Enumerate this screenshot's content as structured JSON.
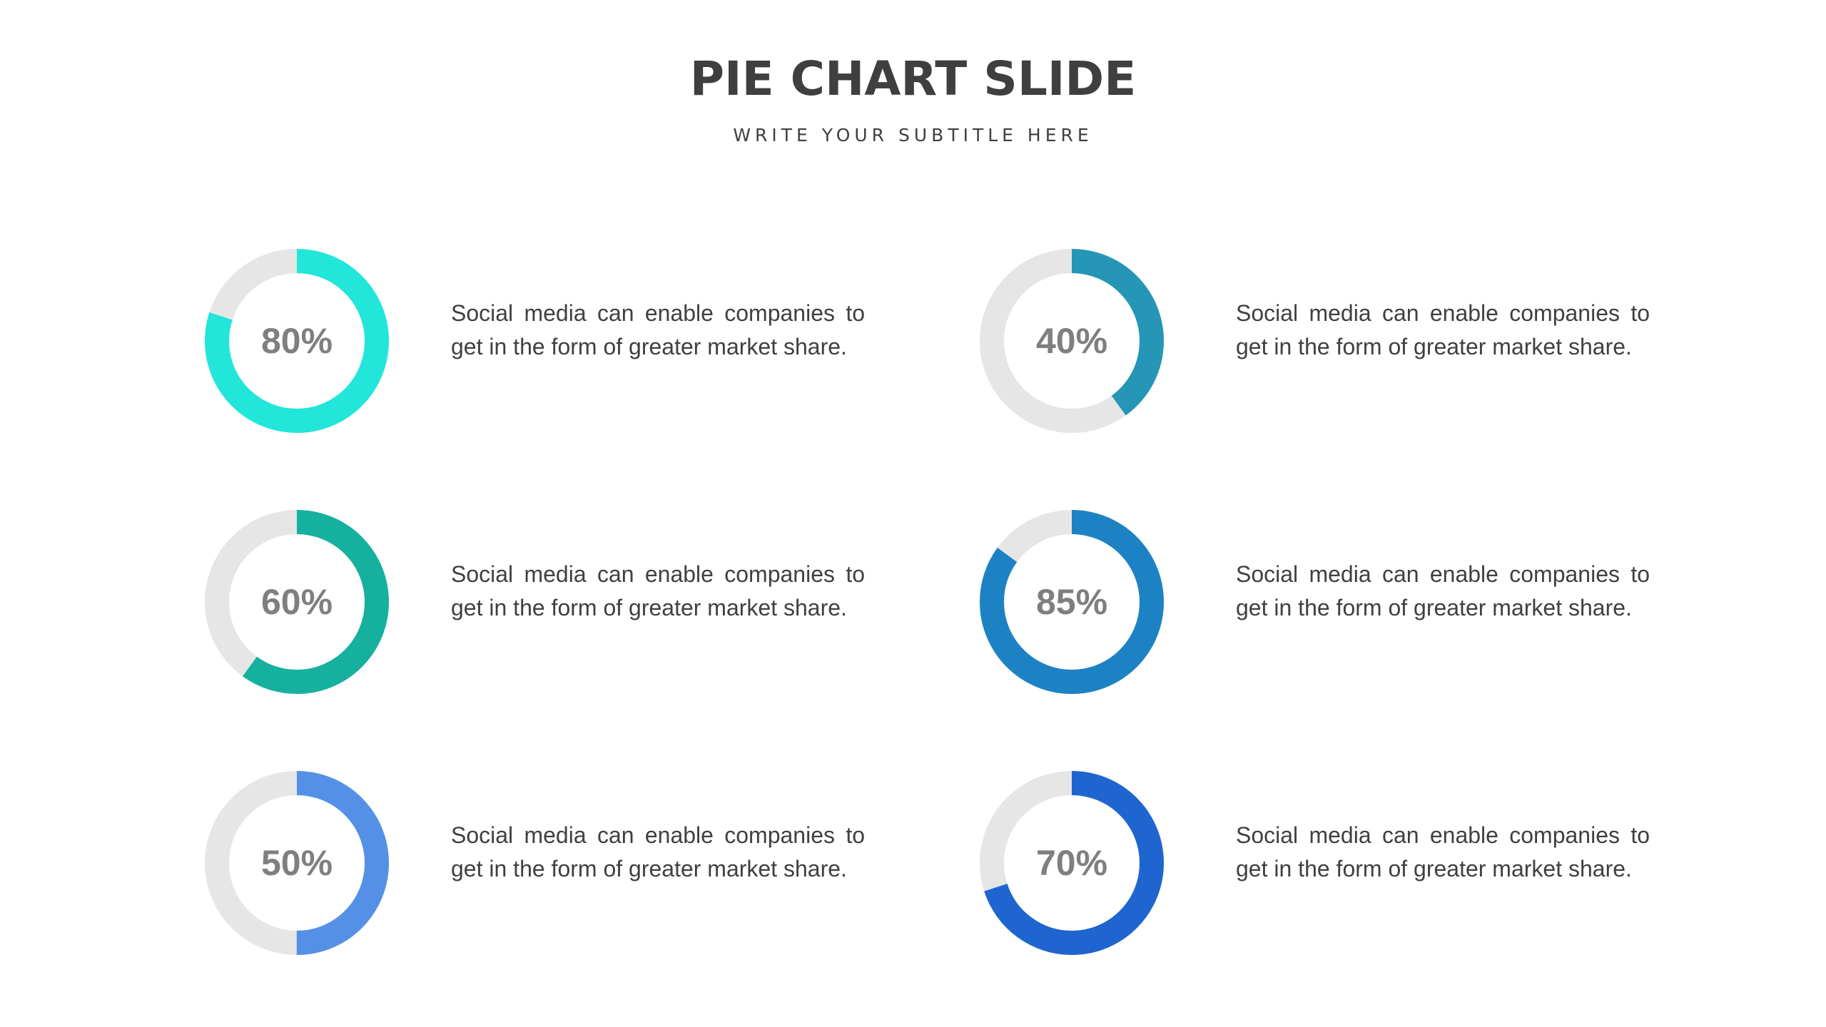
{
  "title": "PIE CHART SLIDE",
  "subtitle": "WRITE YOUR SUBTITLE HERE",
  "colors": {
    "track": "#e6e6e6",
    "text_percent": "#7f7f7f",
    "text_body": "#404040"
  },
  "chart_data": [
    {
      "type": "pie",
      "label": "80%",
      "value": 80,
      "color": "#22e6da",
      "description": "Social media can enable companies to get in the form of greater market share."
    },
    {
      "type": "pie",
      "label": "40%",
      "value": 40,
      "color": "#2596b5",
      "description": "Social media can enable companies to get in the form of greater market share."
    },
    {
      "type": "pie",
      "label": "60%",
      "value": 60,
      "color": "#16b09f",
      "description": "Social media can enable companies to get in the form of greater market share."
    },
    {
      "type": "pie",
      "label": "85%",
      "value": 85,
      "color": "#1d82c4",
      "description": "Social media can enable companies to get in the form of greater market share."
    },
    {
      "type": "pie",
      "label": "50%",
      "value": 50,
      "color": "#5491e6",
      "description": "Social media can enable companies to get in the form of greater market share."
    },
    {
      "type": "pie",
      "label": "70%",
      "value": 70,
      "color": "#1e65d0",
      "description": "Social media can enable companies to get in the form of greater market share."
    }
  ]
}
